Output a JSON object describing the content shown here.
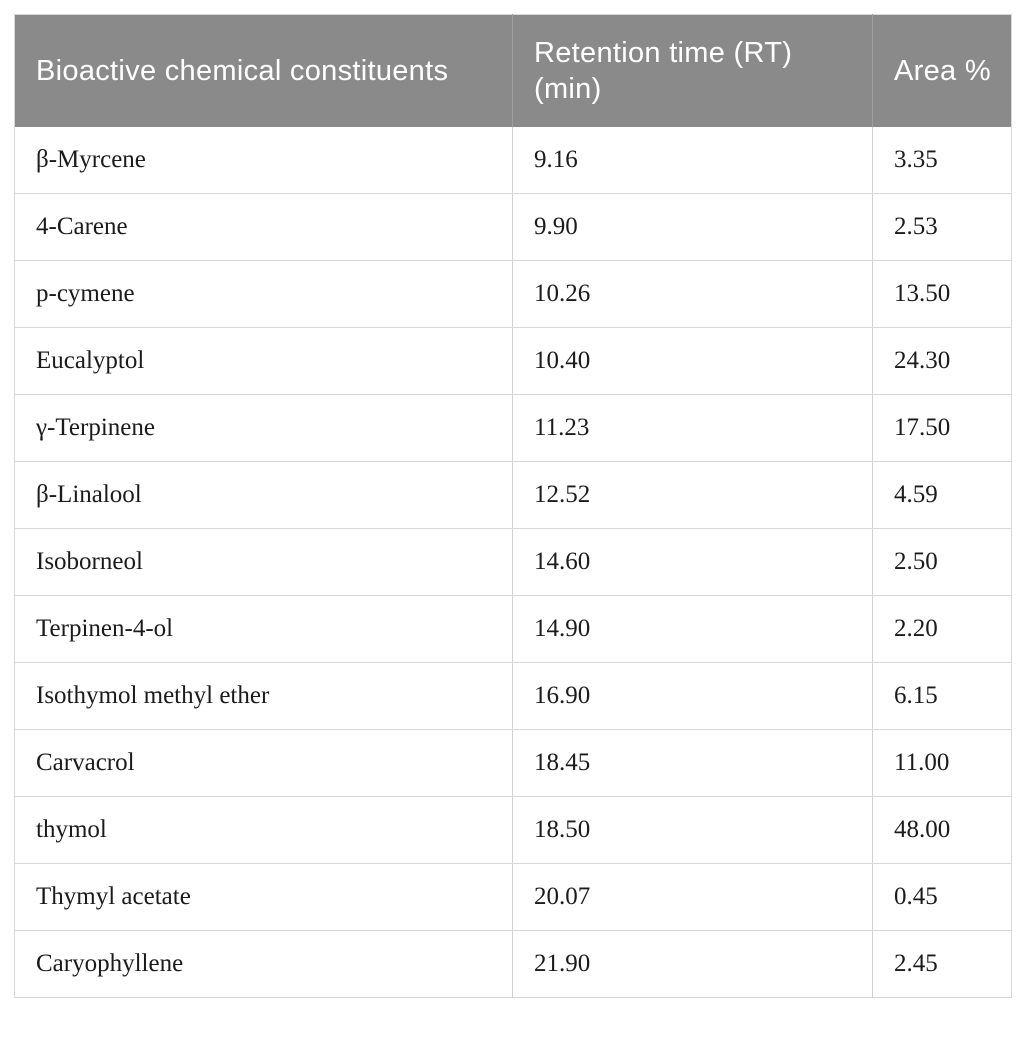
{
  "table": {
    "headers": {
      "constituent": "Bioactive chemical constituents",
      "retention_time": "Retention time (RT) (min)",
      "area_percent": "Area %"
    },
    "rows": [
      {
        "constituent": "β-Myrcene",
        "rt": "9.16",
        "area": "3.35"
      },
      {
        "constituent": "4-Carene",
        "rt": "9.90",
        "area": "2.53"
      },
      {
        "constituent": "p-cymene",
        "rt": "10.26",
        "area": "13.50"
      },
      {
        "constituent": "Eucalyptol",
        "rt": "10.40",
        "area": "24.30"
      },
      {
        "constituent": "γ-Terpinene",
        "rt": "11.23",
        "area": "17.50"
      },
      {
        "constituent": "β-Linalool",
        "rt": "12.52",
        "area": "4.59"
      },
      {
        "constituent": "Isoborneol",
        "rt": "14.60",
        "area": "2.50"
      },
      {
        "constituent": "Terpinen-4-ol",
        "rt": "14.90",
        "area": "2.20"
      },
      {
        "constituent": "Isothymol methyl ether",
        "rt": "16.90",
        "area": "6.15"
      },
      {
        "constituent": "Carvacrol",
        "rt": "18.45",
        "area": "11.00"
      },
      {
        "constituent": "thymol",
        "rt": "18.50",
        "area": "48.00"
      },
      {
        "constituent": "Thymyl acetate",
        "rt": "20.07",
        "area": "0.45"
      },
      {
        "constituent": "Caryophyllene",
        "rt": "21.90",
        "area": "2.45"
      }
    ]
  },
  "colors": {
    "header_bg": "#8a8a8a",
    "header_text": "#ffffff",
    "body_text": "#1b1b1b",
    "row_border": "#d8d8d8",
    "column_divider": "#d0d0d0"
  },
  "chart_data": {
    "type": "table",
    "columns": [
      "Bioactive chemical constituents",
      "Retention time (RT) (min)",
      "Area %"
    ],
    "rows": [
      [
        "β-Myrcene",
        9.16,
        3.35
      ],
      [
        "4-Carene",
        9.9,
        2.53
      ],
      [
        "p-cymene",
        10.26,
        13.5
      ],
      [
        "Eucalyptol",
        10.4,
        24.3
      ],
      [
        "γ-Terpinene",
        11.23,
        17.5
      ],
      [
        "β-Linalool",
        12.52,
        4.59
      ],
      [
        "Isoborneol",
        14.6,
        2.5
      ],
      [
        "Terpinen-4-ol",
        14.9,
        2.2
      ],
      [
        "Isothymol methyl ether",
        16.9,
        6.15
      ],
      [
        "Carvacrol",
        18.45,
        11.0
      ],
      [
        "thymol",
        18.5,
        48.0
      ],
      [
        "Thymyl acetate",
        20.07,
        0.45
      ],
      [
        "Caryophyllene",
        21.9,
        2.45
      ]
    ]
  }
}
